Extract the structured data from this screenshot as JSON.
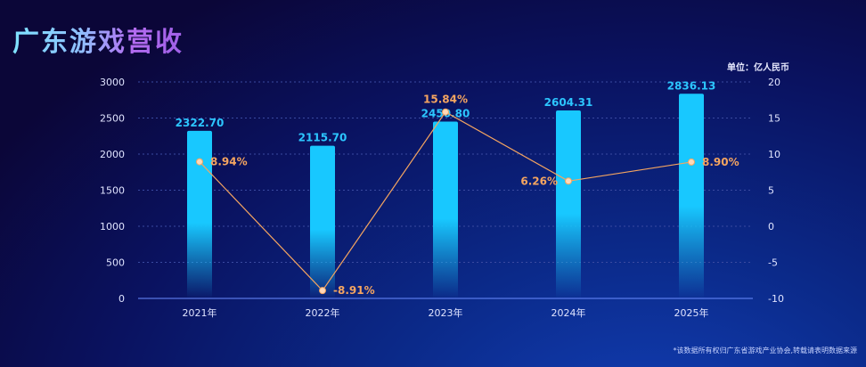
{
  "title": "广东游戏营收",
  "unit": "单位：亿人民币",
  "footnote": "*该数据所有权归广东省游戏产业协会,转载请表明数据来源",
  "chart_data": {
    "type": "bar+line",
    "title": "广东游戏营收",
    "categories": [
      "2021年",
      "2022年",
      "2023年",
      "2024年",
      "2025年"
    ],
    "series": [
      {
        "type": "bar",
        "axis": "left",
        "values": [
          2322.7,
          2115.7,
          2450.8,
          2604.31,
          2836.13
        ],
        "labels": [
          "2322.70",
          "2115.70",
          "2450.80",
          "2604.31",
          "2836.13"
        ],
        "color": "#18c8ff"
      },
      {
        "type": "line",
        "axis": "right",
        "values": [
          8.94,
          -8.91,
          15.84,
          6.26,
          8.9
        ],
        "labels": [
          "8.94%",
          "-8.91%",
          "15.84%",
          "6.26%",
          "8.90%"
        ],
        "color": "#f5a560"
      }
    ],
    "y_left": {
      "range": [
        0,
        3000
      ],
      "ticks": [
        "0",
        "500",
        "1000",
        "1500",
        "2000",
        "2500",
        "3000"
      ]
    },
    "y_right": {
      "range": [
        -10,
        20
      ],
      "ticks": [
        "-10",
        "-5",
        "0",
        "5",
        "10",
        "15",
        "20"
      ]
    },
    "grid": "horizontal dashed",
    "legend": "none"
  }
}
